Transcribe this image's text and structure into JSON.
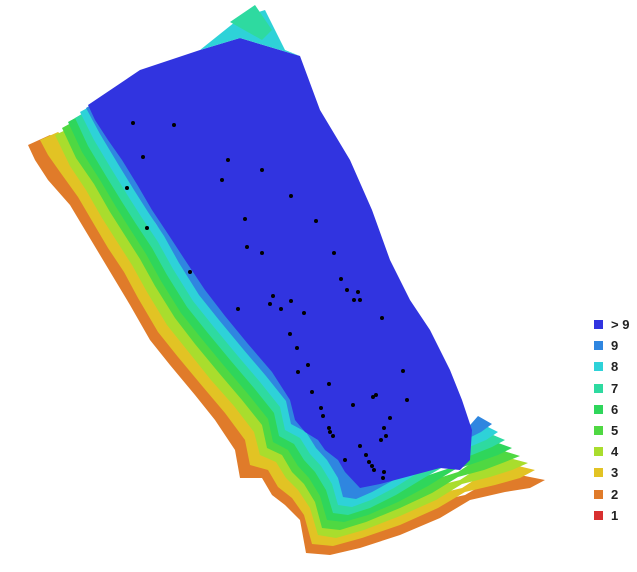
{
  "map": {
    "zones": [
      {
        "level": "2",
        "color": "#e07b2a"
      },
      {
        "level": "3",
        "color": "#e2c324"
      },
      {
        "level": "4",
        "color": "#a9dd2d"
      },
      {
        "level": "5",
        "color": "#4fd842"
      },
      {
        "level": "6",
        "color": "#2fd65b"
      },
      {
        "level": "7",
        "color": "#2edaa0"
      },
      {
        "level": "8",
        "color": "#2ed2d8"
      },
      {
        "level": "9",
        "color": "#2f86e0"
      },
      {
        "level": "> 9",
        "color": "#3134e0"
      }
    ],
    "camera_point_color": "#000000"
  },
  "legend": {
    "items": [
      {
        "label": "> 9",
        "color": "#3134e0"
      },
      {
        "label": "9",
        "color": "#2f86e0"
      },
      {
        "label": "8",
        "color": "#2ed2d8"
      },
      {
        "label": "7",
        "color": "#2edaa0"
      },
      {
        "label": "6",
        "color": "#2fd65b"
      },
      {
        "label": "5",
        "color": "#4fd842"
      },
      {
        "label": "4",
        "color": "#a9dd2d"
      },
      {
        "label": "3",
        "color": "#e2c324"
      },
      {
        "label": "2",
        "color": "#e07b2a"
      },
      {
        "label": "1",
        "color": "#d83030"
      }
    ]
  }
}
